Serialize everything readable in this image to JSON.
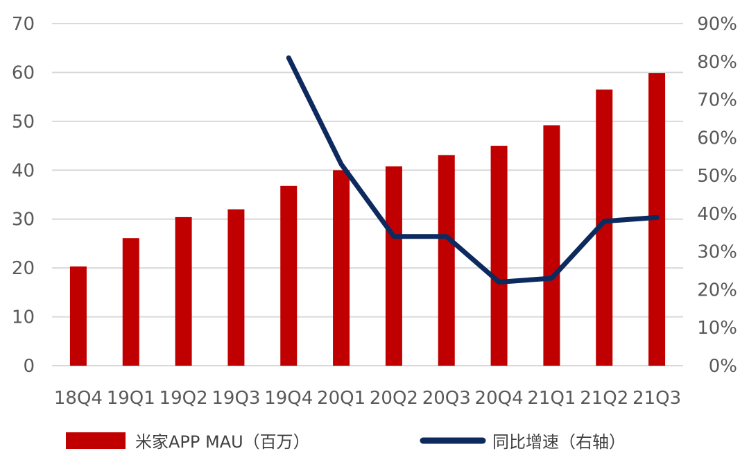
{
  "chart_data": {
    "type": "bar",
    "categories": [
      "18Q4",
      "19Q1",
      "19Q2",
      "19Q3",
      "19Q4",
      "20Q1",
      "20Q2",
      "20Q3",
      "20Q4",
      "21Q1",
      "21Q2",
      "21Q3"
    ],
    "series": [
      {
        "name": "米家APP MAU（百万）",
        "type": "bar",
        "axis": "left",
        "color": "#c00000",
        "values": [
          20.3,
          26.1,
          30.4,
          32.0,
          36.8,
          40.0,
          40.8,
          43.1,
          45.0,
          49.2,
          56.5,
          59.9
        ]
      },
      {
        "name": "同比增速（右轴）",
        "type": "line",
        "axis": "right",
        "color": "#0d2a5e",
        "values": [
          null,
          null,
          null,
          null,
          0.81,
          0.53,
          0.34,
          0.34,
          0.22,
          0.23,
          0.38,
          0.39
        ]
      }
    ],
    "y_left": {
      "lim": [
        0,
        70
      ],
      "ticks": [
        0,
        10,
        20,
        30,
        40,
        50,
        60,
        70
      ],
      "tick_labels": [
        "0",
        "10",
        "20",
        "30",
        "40",
        "50",
        "60",
        "70"
      ]
    },
    "y_right": {
      "lim": [
        0,
        0.9
      ],
      "ticks": [
        0,
        0.1,
        0.2,
        0.3,
        0.4,
        0.5,
        0.6,
        0.7,
        0.8,
        0.9
      ],
      "tick_labels": [
        "0%",
        "10%",
        "20%",
        "30%",
        "40%",
        "50%",
        "60%",
        "70%",
        "80%",
        "90%"
      ]
    },
    "grid": true,
    "legend": {
      "position": "bottom"
    },
    "title": "",
    "xlabel": "",
    "ylabel": ""
  }
}
